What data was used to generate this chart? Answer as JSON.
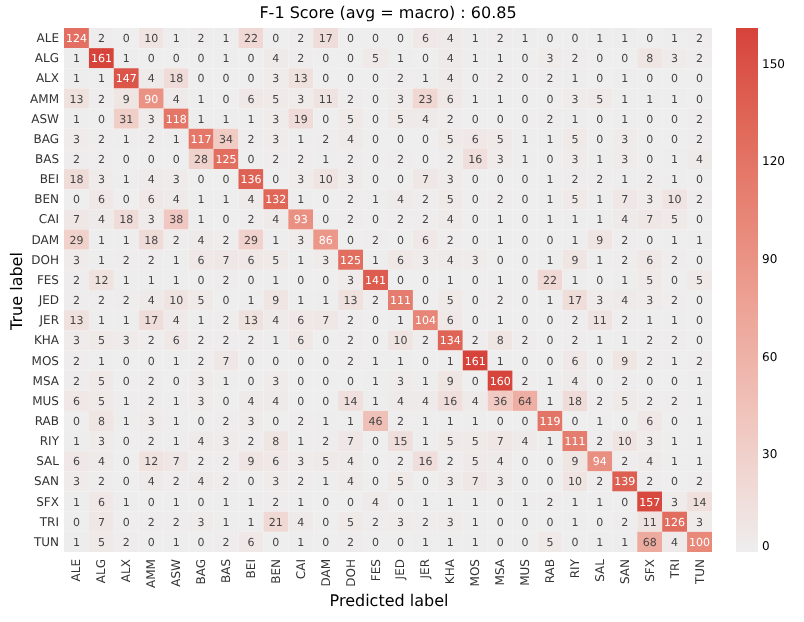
{
  "chart_data": {
    "type": "heatmap",
    "title": "F-1 Score (avg = macro) : 60.85",
    "xlabel": "Predicted label",
    "ylabel": "True label",
    "data_labels": true,
    "categories": [
      "ALE",
      "ALG",
      "ALX",
      "AMM",
      "ASW",
      "BAG",
      "BAS",
      "BEI",
      "BEN",
      "CAI",
      "DAM",
      "DOH",
      "FES",
      "JED",
      "JER",
      "KHA",
      "MOS",
      "MSA",
      "MUS",
      "RAB",
      "RIY",
      "SAL",
      "SAN",
      "SFX",
      "TRI",
      "TUN"
    ],
    "y_categories": [
      "ALE",
      "ALG",
      "ALX",
      "AMM",
      "ASW",
      "BAG",
      "BAS",
      "BEI",
      "BEN",
      "CAI",
      "DAM",
      "DOH",
      "FES",
      "JED",
      "JER",
      "KHA",
      "MOS",
      "MSA",
      "MUS",
      "RAB",
      "RIY",
      "SAL",
      "SAN",
      "SFX",
      "TRI",
      "TUN"
    ],
    "cells": [
      [
        124,
        2,
        0,
        10,
        1,
        2,
        1,
        22,
        0,
        2,
        17,
        0,
        0,
        0,
        6,
        4,
        1,
        2,
        1,
        0,
        0,
        1,
        1,
        0,
        1,
        2
      ],
      [
        1,
        161,
        1,
        0,
        0,
        0,
        1,
        0,
        4,
        2,
        0,
        0,
        5,
        1,
        0,
        4,
        1,
        1,
        0,
        3,
        2,
        0,
        0,
        8,
        3,
        2
      ],
      [
        1,
        1,
        147,
        4,
        18,
        0,
        0,
        0,
        3,
        13,
        0,
        0,
        0,
        2,
        1,
        4,
        0,
        2,
        0,
        2,
        1,
        0,
        1,
        0,
        0,
        0
      ],
      [
        13,
        2,
        9,
        90,
        4,
        1,
        0,
        6,
        5,
        3,
        11,
        2,
        0,
        3,
        23,
        6,
        1,
        1,
        0,
        0,
        3,
        5,
        1,
        1,
        1,
        0
      ],
      [
        1,
        0,
        31,
        3,
        118,
        1,
        1,
        1,
        3,
        19,
        0,
        5,
        0,
        5,
        4,
        2,
        0,
        0,
        0,
        2,
        1,
        0,
        1,
        0,
        0,
        2
      ],
      [
        3,
        2,
        1,
        2,
        1,
        117,
        34,
        2,
        3,
        1,
        2,
        4,
        0,
        0,
        0,
        5,
        6,
        5,
        1,
        1,
        5,
        0,
        3,
        0,
        0,
        2
      ],
      [
        2,
        2,
        0,
        0,
        0,
        28,
        125,
        0,
        2,
        2,
        1,
        2,
        0,
        2,
        0,
        2,
        16,
        3,
        1,
        0,
        3,
        1,
        3,
        0,
        1,
        4
      ],
      [
        18,
        3,
        1,
        4,
        3,
        0,
        0,
        136,
        0,
        3,
        10,
        3,
        0,
        0,
        7,
        3,
        0,
        0,
        0,
        1,
        2,
        2,
        1,
        2,
        1,
        0
      ],
      [
        0,
        6,
        0,
        6,
        4,
        1,
        1,
        4,
        132,
        1,
        0,
        2,
        1,
        4,
        2,
        5,
        0,
        2,
        0,
        1,
        5,
        1,
        7,
        3,
        10,
        2
      ],
      [
        7,
        4,
        18,
        3,
        38,
        1,
        0,
        2,
        4,
        93,
        0,
        2,
        0,
        2,
        2,
        4,
        0,
        1,
        0,
        1,
        1,
        1,
        4,
        7,
        5,
        0
      ],
      [
        29,
        1,
        1,
        18,
        2,
        4,
        2,
        29,
        1,
        3,
        86,
        0,
        2,
        0,
        6,
        2,
        0,
        1,
        0,
        0,
        1,
        9,
        2,
        0,
        1,
        1
      ],
      [
        3,
        1,
        2,
        2,
        1,
        6,
        7,
        6,
        5,
        1,
        3,
        125,
        1,
        6,
        3,
        4,
        3,
        0,
        0,
        1,
        9,
        1,
        2,
        6,
        2,
        0
      ],
      [
        2,
        12,
        1,
        1,
        1,
        0,
        2,
        0,
        1,
        0,
        0,
        3,
        141,
        0,
        0,
        1,
        0,
        1,
        0,
        22,
        1,
        0,
        1,
        5,
        0,
        5
      ],
      [
        2,
        2,
        2,
        4,
        10,
        5,
        0,
        1,
        9,
        1,
        1,
        13,
        2,
        111,
        0,
        5,
        0,
        2,
        0,
        1,
        17,
        3,
        4,
        3,
        2,
        0
      ],
      [
        13,
        1,
        1,
        17,
        4,
        1,
        2,
        13,
        4,
        6,
        7,
        2,
        0,
        1,
        104,
        6,
        0,
        1,
        0,
        0,
        2,
        11,
        2,
        1,
        1,
        0
      ],
      [
        3,
        5,
        3,
        2,
        6,
        2,
        2,
        2,
        1,
        6,
        0,
        2,
        0,
        10,
        2,
        134,
        2,
        8,
        2,
        0,
        2,
        1,
        1,
        2,
        2,
        0
      ],
      [
        2,
        1,
        0,
        0,
        1,
        2,
        7,
        0,
        0,
        0,
        0,
        2,
        1,
        1,
        0,
        1,
        161,
        1,
        0,
        0,
        6,
        0,
        9,
        2,
        1,
        2
      ],
      [
        2,
        5,
        0,
        2,
        0,
        3,
        1,
        0,
        3,
        0,
        0,
        0,
        1,
        3,
        1,
        9,
        0,
        160,
        2,
        1,
        4,
        0,
        2,
        0,
        0,
        1
      ],
      [
        6,
        5,
        1,
        2,
        1,
        3,
        0,
        4,
        4,
        0,
        0,
        14,
        1,
        4,
        4,
        16,
        4,
        36,
        64,
        1,
        18,
        2,
        5,
        2,
        2,
        1
      ],
      [
        0,
        8,
        1,
        3,
        1,
        0,
        2,
        3,
        0,
        2,
        1,
        1,
        46,
        2,
        1,
        1,
        1,
        0,
        0,
        119,
        0,
        1,
        0,
        6,
        0,
        1
      ],
      [
        1,
        3,
        0,
        2,
        1,
        4,
        3,
        2,
        8,
        1,
        2,
        7,
        0,
        15,
        1,
        5,
        5,
        7,
        4,
        1,
        111,
        2,
        10,
        3,
        1,
        1
      ],
      [
        6,
        4,
        0,
        12,
        7,
        2,
        2,
        9,
        6,
        3,
        5,
        4,
        0,
        2,
        16,
        2,
        5,
        4,
        0,
        0,
        9,
        94,
        2,
        4,
        1,
        1
      ],
      [
        3,
        2,
        0,
        4,
        2,
        4,
        2,
        0,
        3,
        2,
        1,
        4,
        0,
        5,
        0,
        3,
        7,
        3,
        0,
        0,
        10,
        2,
        139,
        2,
        0,
        2
      ],
      [
        1,
        6,
        1,
        0,
        1,
        0,
        1,
        1,
        2,
        1,
        0,
        0,
        4,
        0,
        1,
        1,
        1,
        0,
        1,
        2,
        1,
        1,
        0,
        157,
        3,
        14
      ],
      [
        0,
        7,
        0,
        2,
        2,
        3,
        1,
        1,
        21,
        4,
        0,
        5,
        2,
        3,
        2,
        3,
        1,
        0,
        0,
        0,
        1,
        0,
        2,
        11,
        126,
        3
      ],
      [
        1,
        5,
        2,
        0,
        1,
        0,
        2,
        6,
        0,
        1,
        0,
        2,
        0,
        0,
        1,
        1,
        1,
        0,
        0,
        5,
        0,
        1,
        1,
        68,
        4,
        100
      ]
    ],
    "clim": [
      0,
      161
    ],
    "cticks": [
      0,
      30,
      60,
      90,
      120,
      150
    ]
  }
}
